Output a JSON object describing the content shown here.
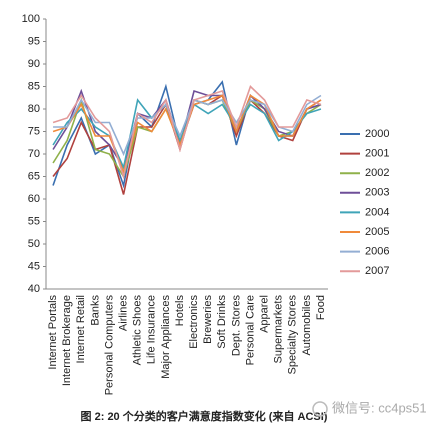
{
  "chart_data": {
    "type": "line",
    "caption": "图 2: 20 个分类的客户满意度指数变化 (来自 ACSI)",
    "watermark": "微信号: cc4ps51",
    "categories": [
      "Internet Portals",
      "Internet Brokerage",
      "Internet Retail",
      "Banks",
      "Personal Computers",
      "Airlines",
      "Athletic Shoes",
      "Life Insurance",
      "Major Appliances",
      "Hotels",
      "Electronics",
      "Breweries",
      "Soft Drinks",
      "Dept. Stores",
      "Personal Care",
      "Apparel",
      "Supermarkets",
      "Specialty Stores",
      "Automobiles",
      "Food"
    ],
    "series": [
      {
        "name": "2000",
        "color": "#3a6fb0",
        "values": [
          63,
          72,
          78,
          70,
          72,
          63,
          79,
          76,
          85,
          72,
          81,
          82,
          86,
          72,
          83,
          80,
          74,
          74,
          80,
          81
        ]
      },
      {
        "name": "2001",
        "color": "#b0413e",
        "values": [
          65,
          69,
          77,
          71,
          72,
          61,
          76,
          76,
          81,
          71,
          82,
          81,
          83,
          74,
          82,
          79,
          74,
          73,
          80,
          82
        ]
      },
      {
        "name": "2002",
        "color": "#8fb14a",
        "values": [
          68,
          73,
          82,
          71,
          70,
          65,
          76,
          75,
          80,
          72,
          82,
          81,
          82,
          75,
          82,
          80,
          74,
          75,
          79,
          81
        ]
      },
      {
        "name": "2003",
        "color": "#6e4f98",
        "values": [
          71,
          76,
          84,
          75,
          72,
          67,
          79,
          78,
          82,
          72,
          84,
          83,
          83,
          75,
          83,
          80,
          75,
          74,
          80,
          81
        ]
      },
      {
        "name": "2004",
        "color": "#3fa4b8",
        "values": [
          72,
          77,
          80,
          76,
          74,
          67,
          82,
          78,
          81,
          73,
          81,
          79,
          81,
          76,
          81,
          79,
          73,
          75,
          79,
          80
        ]
      },
      {
        "name": "2005",
        "color": "#f08a3a",
        "values": [
          75,
          76,
          81,
          74,
          74,
          66,
          77,
          75,
          80,
          72,
          81,
          82,
          83,
          75,
          83,
          81,
          74,
          74,
          80,
          82
        ]
      },
      {
        "name": "2006",
        "color": "#93aed3",
        "values": [
          76,
          76,
          82,
          77,
          77,
          70,
          78,
          78,
          81,
          74,
          82,
          81,
          82,
          77,
          82,
          81,
          76,
          75,
          81,
          83
        ]
      },
      {
        "name": "2007",
        "color": "#e39a9a",
        "values": [
          77,
          78,
          83,
          78,
          75,
          65,
          79,
          77,
          82,
          71,
          82,
          83,
          84,
          76,
          85,
          82,
          76,
          76,
          82,
          81
        ]
      }
    ],
    "ylim": [
      40,
      100
    ],
    "yticks": [
      40,
      45,
      50,
      55,
      60,
      65,
      70,
      75,
      80,
      85,
      90,
      95,
      100
    ],
    "grid": false,
    "legend": "right"
  }
}
